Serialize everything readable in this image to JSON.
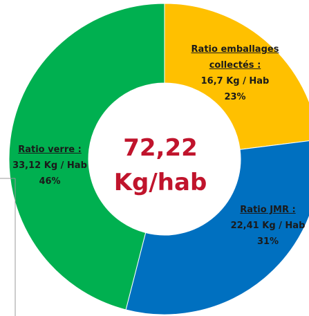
{
  "chart_data": {
    "type": "donut",
    "categories": [
      "Ratio emballages collectés :",
      "Ratio JMR :",
      "Ratio verre :"
    ],
    "values": [
      23,
      31,
      46
    ],
    "value_labels": [
      "23%",
      "31%",
      "46%"
    ],
    "amount_labels": [
      "16,7 Kg / Hab",
      "22,41 Kg / Hab",
      "33,12 Kg / Hab"
    ],
    "colors": [
      "#ffc000",
      "#0070c0",
      "#00b050"
    ],
    "center_value": "72,22",
    "center_unit": "Kg/hab"
  }
}
